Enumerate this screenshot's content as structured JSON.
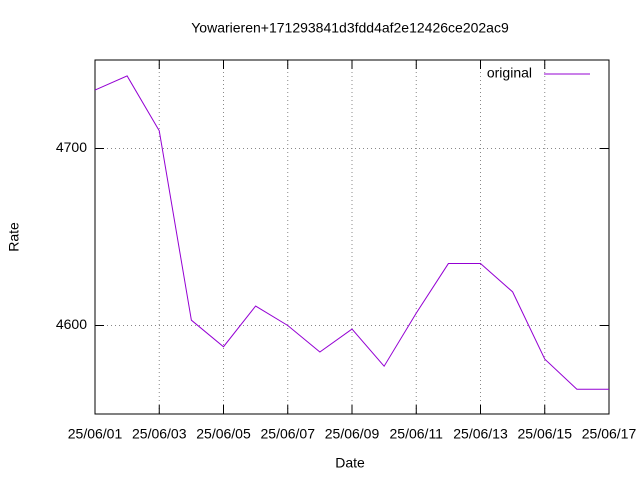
{
  "chart_data": {
    "type": "line",
    "title": "Yowarieren+171293841d3fdd4af2e12426ce202ac9",
    "x_label": "Date",
    "y_label": "Rate",
    "categories": [
      "25/06/01",
      null,
      "25/06/03",
      null,
      "25/06/05",
      null,
      "25/06/07",
      null,
      "25/06/09",
      null,
      "25/06/11",
      null,
      "25/06/13",
      null,
      "25/06/15",
      null,
      "25/06/17"
    ],
    "series": [
      {
        "name": "original",
        "color": "#9400d3",
        "values": [
          4733,
          4741,
          4710,
          4603,
          4588,
          4611,
          4600,
          4585,
          4598,
          4577,
          4607,
          4635,
          4635,
          4619,
          4581,
          4564,
          4564
        ]
      }
    ],
    "ylim": [
      4550,
      4750
    ],
    "yticks": [
      4600,
      4700
    ],
    "grid": true,
    "legend": "top-right"
  }
}
